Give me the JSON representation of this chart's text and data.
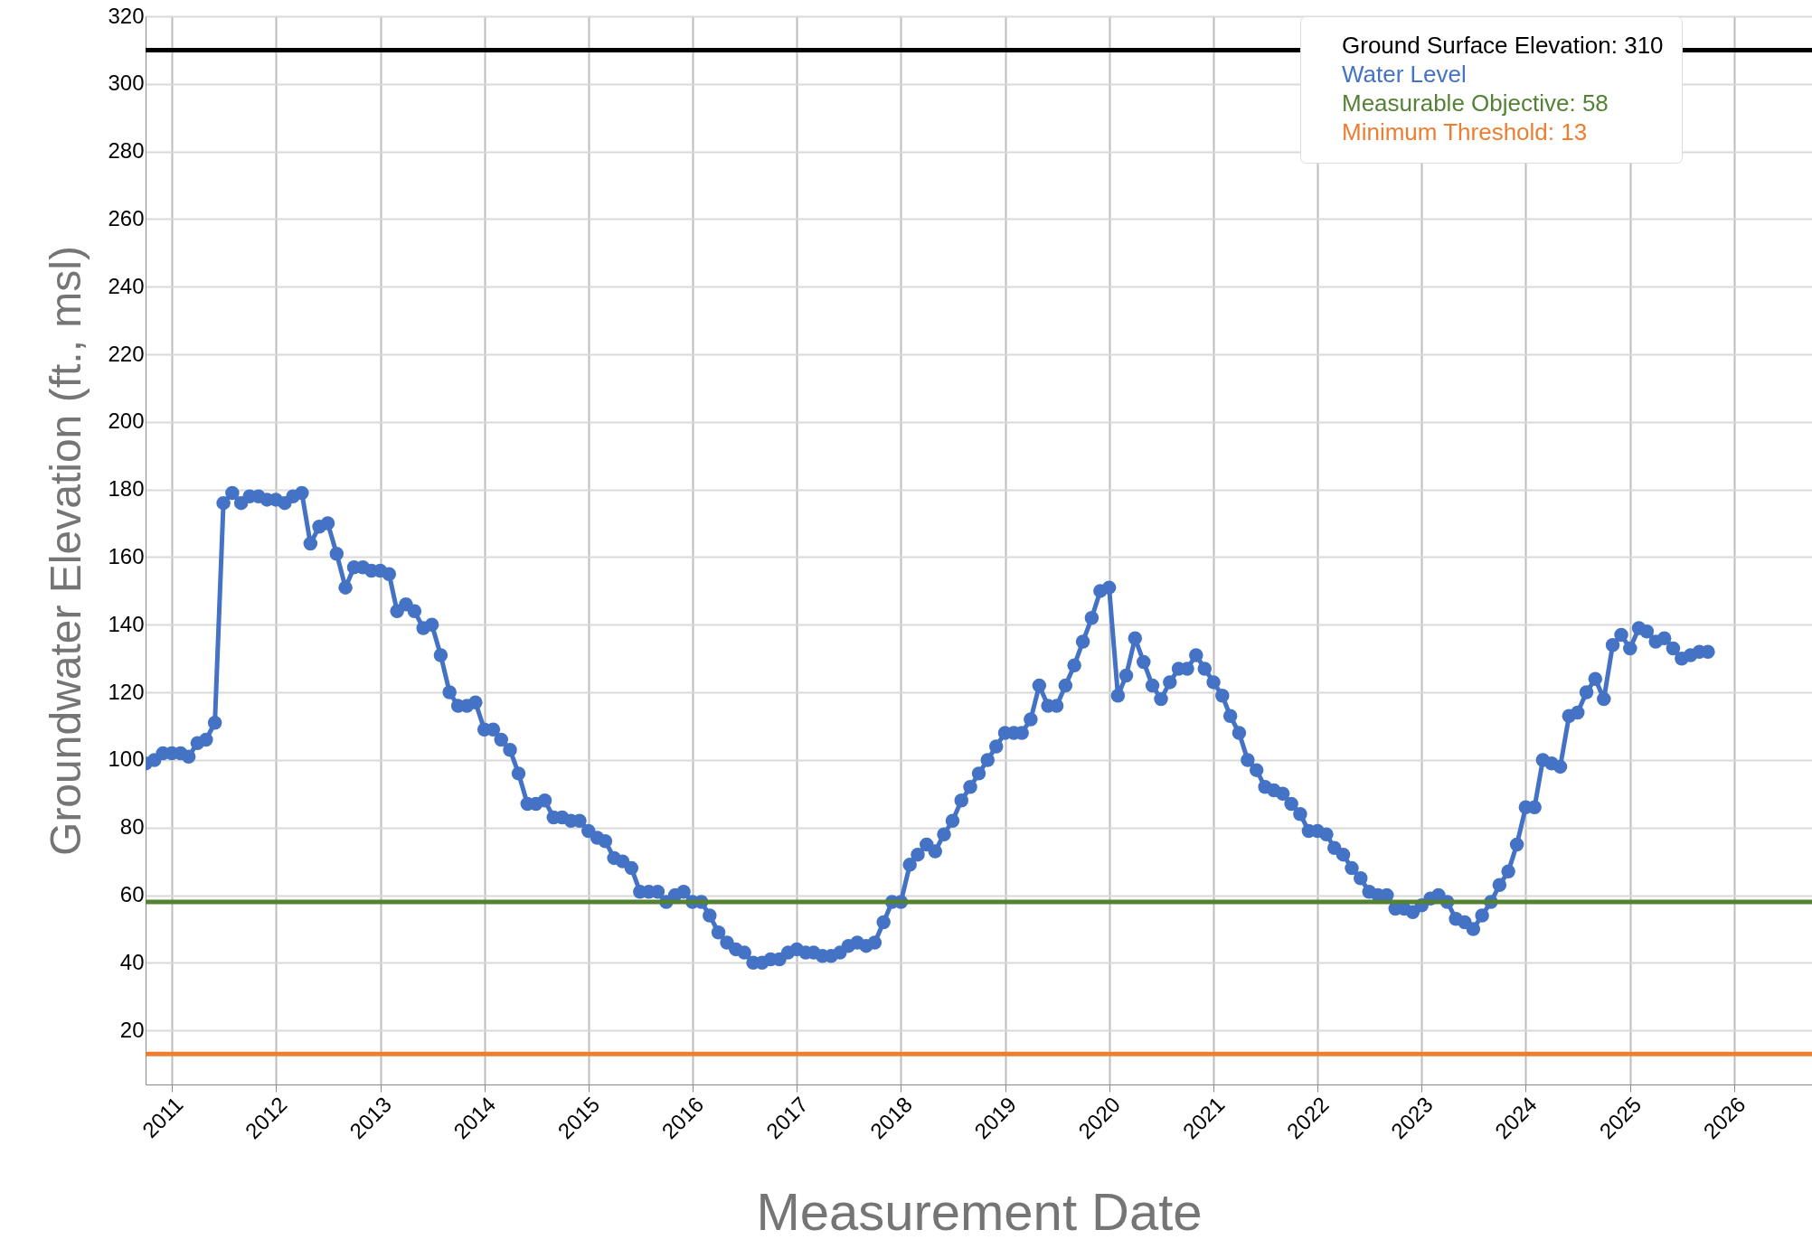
{
  "chart_data": {
    "type": "line",
    "xlabel": "Measurement Date",
    "ylabel": "Groundwater Elevation (ft., msl)",
    "xlim": [
      "2010-10-01",
      "2026-10-01"
    ],
    "xticks": [
      "2011",
      "2012",
      "2013",
      "2014",
      "2015",
      "2016",
      "2017",
      "2018",
      "2019",
      "2020",
      "2021",
      "2022",
      "2023",
      "2024",
      "2025",
      "2026"
    ],
    "ylim": [
      4,
      320
    ],
    "yticks": [
      20,
      40,
      60,
      80,
      100,
      120,
      140,
      160,
      180,
      200,
      220,
      240,
      260,
      280,
      300,
      320
    ],
    "grid": true,
    "legend": "top right",
    "marker": "circle",
    "line_style": "solid",
    "x": [
      "2010-10",
      "2010-11",
      "2010-12",
      "2011-01",
      "2011-02",
      "2011-03",
      "2011-04",
      "2011-05",
      "2011-06",
      "2011-07",
      "2011-08",
      "2011-09",
      "2011-10",
      "2011-11",
      "2011-12",
      "2012-01",
      "2012-02",
      "2012-03",
      "2012-04",
      "2012-05",
      "2012-06",
      "2012-07",
      "2012-08",
      "2012-09",
      "2012-10",
      "2012-11",
      "2012-12",
      "2013-01",
      "2013-02",
      "2013-03",
      "2013-04",
      "2013-05",
      "2013-06",
      "2013-07",
      "2013-08",
      "2013-09",
      "2013-10",
      "2013-11",
      "2013-12",
      "2014-01",
      "2014-02",
      "2014-03",
      "2014-04",
      "2014-05",
      "2014-06",
      "2014-07",
      "2014-08",
      "2014-09",
      "2014-10",
      "2014-11",
      "2014-12",
      "2015-01",
      "2015-02",
      "2015-03",
      "2015-04",
      "2015-05",
      "2015-06",
      "2015-07",
      "2015-08",
      "2015-09",
      "2015-10",
      "2015-11",
      "2015-12",
      "2016-01",
      "2016-02",
      "2016-03",
      "2016-04",
      "2016-05",
      "2016-06",
      "2016-07",
      "2016-08",
      "2016-09",
      "2016-10",
      "2016-11",
      "2016-12",
      "2017-01",
      "2017-02",
      "2017-03",
      "2017-04",
      "2017-05",
      "2017-06",
      "2017-07",
      "2017-08",
      "2017-09",
      "2017-10",
      "2017-11",
      "2017-12",
      "2018-01",
      "2018-02",
      "2018-03",
      "2018-04",
      "2018-05",
      "2018-06",
      "2018-07",
      "2018-08",
      "2018-09",
      "2018-10",
      "2018-11",
      "2018-12",
      "2019-01",
      "2019-02",
      "2019-03",
      "2019-04",
      "2019-05",
      "2019-06",
      "2019-07",
      "2019-08",
      "2019-09",
      "2019-10",
      "2019-11",
      "2019-12",
      "2020-01",
      "2020-02",
      "2020-03",
      "2020-04",
      "2020-05",
      "2020-06",
      "2020-07",
      "2020-08",
      "2020-09",
      "2020-10",
      "2020-11",
      "2020-12",
      "2021-01",
      "2021-02",
      "2021-03",
      "2021-04",
      "2021-05",
      "2021-06",
      "2021-07",
      "2021-08",
      "2021-09",
      "2021-10",
      "2021-11",
      "2021-12",
      "2022-01",
      "2022-02",
      "2022-03",
      "2022-04",
      "2022-05",
      "2022-06",
      "2022-07",
      "2022-08",
      "2022-09",
      "2022-10",
      "2022-11",
      "2022-12",
      "2023-01",
      "2023-02",
      "2023-03",
      "2023-04",
      "2023-05",
      "2023-06",
      "2023-07",
      "2023-08",
      "2023-09",
      "2023-10",
      "2023-11",
      "2023-12",
      "2024-01",
      "2024-02",
      "2024-03",
      "2024-04",
      "2024-05",
      "2024-06",
      "2024-07",
      "2024-08",
      "2024-09",
      "2024-10",
      "2024-11",
      "2024-12",
      "2025-01",
      "2025-02",
      "2025-03",
      "2025-04",
      "2025-05",
      "2025-06",
      "2025-07",
      "2025-08",
      "2025-09",
      "2025-10"
    ],
    "series": [
      {
        "name": "Water Level",
        "color": "#4472c4",
        "values": [
          99,
          100,
          102,
          102,
          102,
          101,
          105,
          106,
          111,
          176,
          179,
          176,
          178,
          178,
          177,
          177,
          176,
          178,
          179,
          164,
          169,
          170,
          161,
          151,
          157,
          157,
          156,
          156,
          155,
          144,
          146,
          144,
          139,
          140,
          131,
          120,
          116,
          116,
          117,
          109,
          109,
          106,
          103,
          96,
          87,
          87,
          88,
          83,
          83,
          82,
          82,
          79,
          77,
          76,
          71,
          70,
          68,
          61,
          61,
          61,
          58,
          60,
          61,
          58,
          58,
          54,
          49,
          46,
          44,
          43,
          40,
          40,
          41,
          41,
          43,
          44,
          43,
          43,
          42,
          42,
          43,
          45,
          46,
          45,
          46,
          52,
          58,
          58,
          69,
          72,
          75,
          73,
          78,
          82,
          88,
          92,
          96,
          100,
          104,
          108,
          108,
          108,
          112,
          122,
          116,
          116,
          122,
          128,
          135,
          142,
          150,
          151,
          119,
          125,
          136,
          129,
          122,
          118,
          123,
          127,
          127,
          131,
          127,
          123,
          119,
          113,
          108,
          100,
          97,
          92,
          91,
          90,
          87,
          84,
          79,
          79,
          78,
          74,
          72,
          68,
          65,
          61,
          60,
          60,
          56,
          56,
          55,
          57,
          59,
          60,
          58,
          53,
          52,
          50,
          54,
          58,
          63,
          67,
          75,
          86,
          86,
          100,
          99,
          98,
          113,
          114,
          120,
          124,
          118,
          134,
          137,
          133,
          139,
          138,
          135,
          136,
          133,
          130,
          131,
          132,
          132
        ]
      }
    ],
    "ref_lines": [
      {
        "axis": "y",
        "value": 310,
        "label": "Ground Surface Elevation: 310",
        "color": "#000000"
      },
      {
        "axis": "y",
        "value": 58,
        "label": "Measurable Objective: 58",
        "color": "#548235"
      },
      {
        "axis": "y",
        "value": 13,
        "label": "Minimum Threshold: 13",
        "color": "#ed7d31"
      }
    ]
  }
}
